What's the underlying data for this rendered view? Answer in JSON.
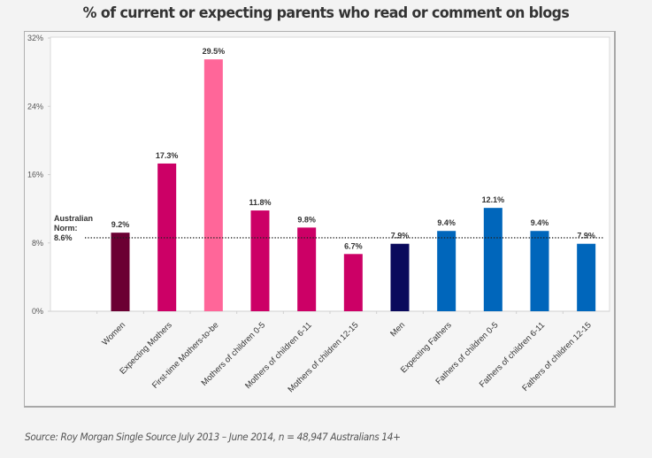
{
  "chart_data": {
    "type": "bar",
    "title": "% of current or expecting parents who read or comment on blogs",
    "xlabel": "",
    "ylabel": "",
    "ylim": [
      0,
      32
    ],
    "yticks": [
      0,
      8,
      16,
      24,
      32
    ],
    "ytick_labels": [
      "0%",
      "8%",
      "16%",
      "24%",
      "32%"
    ],
    "grid": false,
    "legend": null,
    "categories": [
      "Women",
      "Expecting Mothers",
      "First-time Mothers-to-be",
      "Mothers of children 0-5",
      "Mothers of children 6-11",
      "Mothers of children 12-15",
      "Men",
      "Expecting Fathers",
      "Fathers of children 0-5",
      "Fathers of children 6-11",
      "Fathers of children 12-15"
    ],
    "values": [
      9.2,
      17.3,
      29.5,
      11.8,
      9.8,
      6.7,
      7.9,
      9.4,
      12.1,
      9.4,
      7.9
    ],
    "value_labels": [
      "9.2%",
      "17.3%",
      "29.5%",
      "11.8%",
      "9.8%",
      "6.7%",
      "7.9%",
      "9.4%",
      "12.1%",
      "9.4%",
      "7.9%"
    ],
    "colors": [
      "#6b0033",
      "#cc0066",
      "#ff6699",
      "#cc0066",
      "#cc0066",
      "#cc0066",
      "#0a0a5c",
      "#0066bb",
      "#0066bb",
      "#0066bb",
      "#0066bb"
    ],
    "reference_line": {
      "label_lines": [
        "Australian",
        "Norm:",
        "8.6%"
      ],
      "value": 8.6,
      "style": "dotted"
    }
  },
  "header": {
    "title": "% of current or expecting parents who read or comment on blogs"
  },
  "footer": {
    "source": "Source: Roy Morgan Single Source July 2013 – June 2014, n = 48,947 Australians 14+"
  }
}
